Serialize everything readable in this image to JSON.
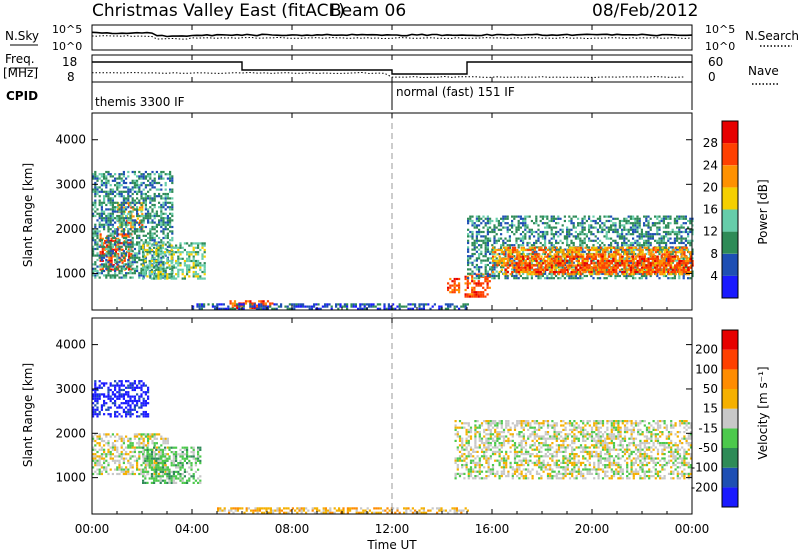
{
  "header": {
    "station": "Christmas Valley East (fitACF)",
    "beam": "Beam 06",
    "date": "08/Feb/2012"
  },
  "top_panels": {
    "nsky_label": "N.Sky",
    "nsearch_label": "N.Search",
    "noise_ticks": [
      "10^5",
      "10^0"
    ],
    "freq_label": "Freq.",
    "freq_unit": "[MHz]",
    "freq_ticks": [
      "18",
      "8"
    ],
    "nave_label": "Nave",
    "nave_ticks": [
      "60",
      "0"
    ],
    "cpid_label": "CPID",
    "cpid_entries": [
      {
        "label": "themis 3300 IF",
        "start_hour": 0,
        "end_hour": 12
      },
      {
        "label": "normal (fast) 151 IF",
        "start_hour": 12,
        "end_hour": 24
      }
    ]
  },
  "time_axis": {
    "ticks": [
      "00:00",
      "04:00",
      "08:00",
      "12:00",
      "16:00",
      "20:00",
      "00:00"
    ],
    "label": "Time UT",
    "range_hours": [
      0,
      24
    ]
  },
  "chart_data": [
    {
      "type": "heatmap",
      "name": "power",
      "ylabel": "Slant Range [km]",
      "ylim": [
        180,
        4600
      ],
      "yticks": [
        "1000",
        "2000",
        "3000",
        "4000"
      ],
      "colorbar": {
        "label": "Power [dB]",
        "ticks": [
          "4",
          "8",
          "12",
          "16",
          "20",
          "24",
          "28"
        ],
        "colors": [
          "#1a1aff",
          "#1e4fb4",
          "#2e8b57",
          "#66cdaa",
          "#f5d000",
          "#ff9100",
          "#ff4000",
          "#e60000"
        ]
      },
      "echo_regions": [
        {
          "t0": 0.3,
          "t1": 1.6,
          "r0": 1100,
          "r1": 1900,
          "level": 6
        },
        {
          "t0": 1.0,
          "t1": 2.0,
          "r0": 2000,
          "r1": 2600,
          "level": 5
        },
        {
          "t0": 0.0,
          "t1": 3.2,
          "r0": 900,
          "r1": 3300,
          "level": 2
        },
        {
          "t0": 2.0,
          "t1": 4.5,
          "r0": 900,
          "r1": 1700,
          "level": 3
        },
        {
          "t0": 5.5,
          "t1": 7.2,
          "r0": 250,
          "r1": 400,
          "level": 6
        },
        {
          "t0": 4.0,
          "t1": 12.0,
          "r0": 200,
          "r1": 330,
          "level": 1
        },
        {
          "t0": 12.0,
          "t1": 15.0,
          "r0": 200,
          "r1": 330,
          "level": 1
        },
        {
          "t0": 14.2,
          "t1": 14.7,
          "r0": 600,
          "r1": 900,
          "level": 6
        },
        {
          "t0": 14.9,
          "t1": 15.9,
          "r0": 500,
          "r1": 1000,
          "level": 6
        },
        {
          "t0": 15.0,
          "t1": 24.0,
          "r0": 900,
          "r1": 2300,
          "level": 2
        },
        {
          "t0": 16.0,
          "t1": 24.0,
          "r0": 1000,
          "r1": 1600,
          "level": 5
        },
        {
          "t0": 16.5,
          "t1": 24.0,
          "r0": 1050,
          "r1": 1400,
          "level": 6
        }
      ]
    },
    {
      "type": "heatmap",
      "name": "velocity",
      "ylabel": "Slant Range [km]",
      "ylim": [
        180,
        4600
      ],
      "yticks": [
        "1000",
        "2000",
        "3000",
        "4000"
      ],
      "colorbar": {
        "label": "Velocity [m s⁻¹]",
        "ticks": [
          "200",
          "100",
          "50",
          "15",
          "-15",
          "-50",
          "-100",
          "-200"
        ],
        "colors": [
          "#1a1aff",
          "#1e4fb4",
          "#2e8b57",
          "#4cc94c",
          "#c8c8c8",
          "#f5b000",
          "#ff8c00",
          "#ff4000",
          "#e60000"
        ]
      },
      "echo_regions": [
        {
          "t0": 0.0,
          "t1": 2.2,
          "r0": 2400,
          "r1": 3200,
          "level": 0
        },
        {
          "t0": 0.0,
          "t1": 3.0,
          "r0": 1100,
          "r1": 2000,
          "level": 4
        },
        {
          "t0": 2.0,
          "t1": 4.3,
          "r0": 900,
          "r1": 1700,
          "level": 3
        },
        {
          "t0": 5.0,
          "t1": 12.0,
          "r0": 200,
          "r1": 330,
          "level": 5
        },
        {
          "t0": 12.0,
          "t1": 15.0,
          "r0": 200,
          "r1": 330,
          "level": 5
        },
        {
          "t0": 14.5,
          "t1": 24.0,
          "r0": 1000,
          "r1": 2300,
          "level": 4
        }
      ]
    }
  ]
}
